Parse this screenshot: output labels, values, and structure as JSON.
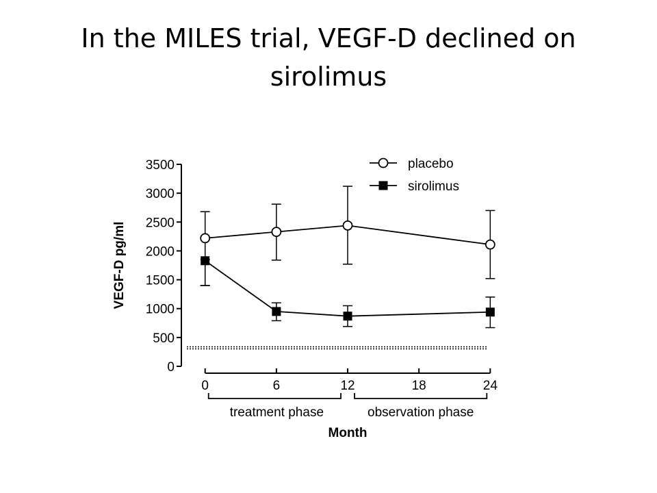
{
  "slide": {
    "title_line1": "In the MILES trial, VEGF-D declined on",
    "title_line2": "sirolimus"
  },
  "chart_data": {
    "type": "line",
    "ylabel": "VEGF-D pg/ml",
    "xlabel": "Month",
    "x_ticks": [
      0,
      6,
      12,
      18,
      24
    ],
    "y_ticks": [
      0,
      500,
      1000,
      1500,
      2000,
      2500,
      3000,
      3500
    ],
    "xlim": [
      -2,
      24.5
    ],
    "ylim": [
      0,
      3500
    ],
    "legend_position": "top-right",
    "series": [
      {
        "name": "placebo",
        "marker": "open-circle",
        "x": [
          0,
          6,
          12,
          24
        ],
        "values": [
          2220,
          2330,
          2440,
          2110
        ],
        "error_low": [
          1400,
          1840,
          1770,
          1520
        ],
        "error_high": [
          2680,
          2810,
          3120,
          2700
        ]
      },
      {
        "name": "sirolimus",
        "marker": "filled-square",
        "x": [
          0,
          6,
          12,
          24
        ],
        "values": [
          1830,
          950,
          870,
          940
        ],
        "error_low": [
          1400,
          790,
          690,
          670
        ],
        "error_high": [
          1850,
          1100,
          1050,
          1200
        ]
      }
    ],
    "reference_line": {
      "y": 320,
      "style": "dotted"
    },
    "phases": [
      {
        "label": "treatment phase",
        "from": 0,
        "to": 12
      },
      {
        "label": "observation phase",
        "from": 12,
        "to": 24
      }
    ],
    "colors": {
      "line": "#000000",
      "background": "#ffffff"
    }
  }
}
